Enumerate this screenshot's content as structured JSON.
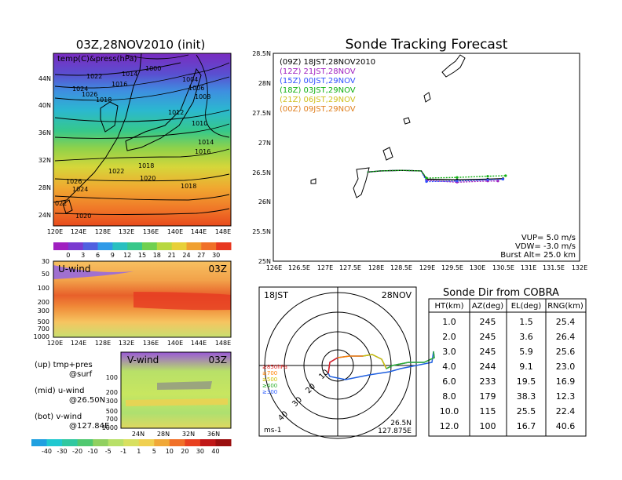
{
  "left_map": {
    "title": "03Z,28NOV2010 (init)",
    "label": "temp(C)&press(hPa)",
    "lat_ticks": [
      "44N",
      "40N",
      "36N",
      "32N",
      "28N",
      "24N"
    ],
    "lon_ticks": [
      "120E",
      "124E",
      "128E",
      "132E",
      "136E",
      "140E",
      "144E",
      "148E"
    ],
    "isobars": [
      "1000",
      "1022",
      "1014",
      "1016",
      "1024",
      "1026",
      "1018",
      "1006",
      "1004",
      "1008",
      "1012",
      "1010",
      "1014",
      "1016",
      "1022",
      "1018",
      "1020",
      "1018",
      "1026",
      "1024",
      "022",
      "1020"
    ]
  },
  "temp_colorbar": {
    "ticks": [
      "0",
      "3",
      "6",
      "9",
      "12",
      "15",
      "18",
      "21",
      "24",
      "27",
      "30"
    ]
  },
  "uwind": {
    "title": "U-wind",
    "time": "03Z",
    "y_ticks": [
      "30",
      "50",
      "100",
      "200",
      "300",
      "500",
      "700",
      "1000"
    ],
    "x_ticks": [
      "120E",
      "124E",
      "128E",
      "132E",
      "136E",
      "140E",
      "144E",
      "148E"
    ]
  },
  "vwind": {
    "title": "V-wind",
    "time": "03Z",
    "y_ticks": [
      "100",
      "200",
      "300",
      "500",
      "700",
      "1000"
    ],
    "x_ticks": [
      "24N",
      "28N",
      "32N",
      "36N"
    ]
  },
  "wind_colorbar": {
    "ticks": [
      "-40",
      "-30",
      "-20",
      "-10",
      "-5",
      "-1",
      "1",
      "5",
      "10",
      "20",
      "30",
      "40"
    ]
  },
  "notes": [
    {
      "a": "(up) tmp+pres",
      "b": "@surf"
    },
    {
      "a": "(mid) u-wind",
      "b": "@26.50N"
    },
    {
      "a": "(bot) v-wind",
      "b": "@127.84E"
    }
  ],
  "tracking": {
    "title": "Sonde Tracking Forecast",
    "legend": [
      {
        "text": "(09Z)  18JST,28NOV2010",
        "color": "#000000"
      },
      {
        "text": "(12Z)  21JST,28NOV",
        "color": "#a020c0"
      },
      {
        "text": "(15Z)  00JST,29NOV",
        "color": "#3050ff"
      },
      {
        "text": "(18Z)  03JST,29NOV",
        "color": "#10b010"
      },
      {
        "text": "(21Z)  06JST,29NOV",
        "color": "#d0c020"
      },
      {
        "text": "(00Z)  09JST,29NOV",
        "color": "#e08020"
      }
    ],
    "lat_ticks": [
      "28.5N",
      "28N",
      "27.5N",
      "27N",
      "26.5N",
      "26N",
      "25.5N",
      "25N"
    ],
    "lon_ticks": [
      "126E",
      "126.5E",
      "127E",
      "127.5E",
      "128E",
      "128.5E",
      "129E",
      "129.5E",
      "130E",
      "130.5E",
      "131E",
      "131.5E",
      "132E"
    ],
    "info": [
      "VUP=  5.0  m/s",
      "VDW=  -3.0  m/s",
      "Burst Alt=  25.0  km"
    ]
  },
  "chart_data": {
    "type": "line",
    "title": "Sonde Tracking Forecast",
    "xlim": [
      126,
      132
    ],
    "ylim": [
      25,
      28.5
    ],
    "series": [
      {
        "name": "(09Z)  18JST,28NOV2010",
        "x": [
          127.84,
          128.1,
          128.5,
          128.9,
          129.0,
          129.6,
          130.2,
          130.5
        ],
        "y": [
          26.5,
          26.52,
          26.53,
          26.52,
          26.38,
          26.37,
          26.38,
          26.39
        ]
      },
      {
        "name": "(12Z)  21JST,28NOV",
        "x": [
          127.84,
          128.1,
          128.5,
          128.9,
          129.0,
          129.6,
          130.2,
          130.4
        ],
        "y": [
          26.5,
          26.52,
          26.53,
          26.52,
          26.36,
          26.33,
          26.35,
          26.35
        ]
      },
      {
        "name": "(15Z)  00JST,29NOV",
        "x": [
          127.84,
          128.1,
          128.5,
          128.9,
          129.0,
          129.6,
          130.2,
          130.5
        ],
        "y": [
          26.5,
          26.52,
          26.53,
          26.52,
          26.34,
          26.35,
          26.37,
          26.38
        ]
      },
      {
        "name": "(18Z)  03JST,29NOV",
        "x": [
          127.84,
          128.1,
          128.5,
          128.9,
          129.0,
          129.6,
          130.2,
          130.55
        ],
        "y": [
          26.5,
          26.52,
          26.53,
          26.52,
          26.4,
          26.41,
          26.43,
          26.44
        ]
      }
    ]
  },
  "polar": {
    "left_label": "18JST",
    "right_label": "28NOV",
    "ring_labels": [
      "10",
      "20",
      "30",
      "40"
    ],
    "level_legend": [
      {
        "t": "≥850hPa",
        "c": "#e02020"
      },
      {
        "t": "≥700",
        "c": "#ff8000"
      },
      {
        "t": "≥500",
        "c": "#d0c000"
      },
      {
        "t": "≥400",
        "c": "#30b030"
      },
      {
        "t": "≥300",
        "c": "#3060ff"
      }
    ],
    "unit": "ms-1",
    "loc1": "26.5N",
    "loc2": "127.875E"
  },
  "cobra": {
    "title": "Sonde Dir from COBRA",
    "headers": [
      "HT(km)",
      "AZ(deg)",
      "EL(deg)",
      "RNG(km)"
    ],
    "rows": [
      [
        "1.0",
        "245",
        "1.5",
        "25.4"
      ],
      [
        "2.0",
        "245",
        "3.6",
        "26.4"
      ],
      [
        "3.0",
        "245",
        "5.9",
        "25.6"
      ],
      [
        "4.0",
        "244",
        "9.1",
        "23.0"
      ],
      [
        "6.0",
        "233",
        "19.5",
        "16.9"
      ],
      [
        "8.0",
        "179",
        "38.3",
        "12.3"
      ],
      [
        "10.0",
        "115",
        "25.5",
        "22.4"
      ],
      [
        "12.0",
        "100",
        "16.7",
        "40.6"
      ]
    ]
  }
}
